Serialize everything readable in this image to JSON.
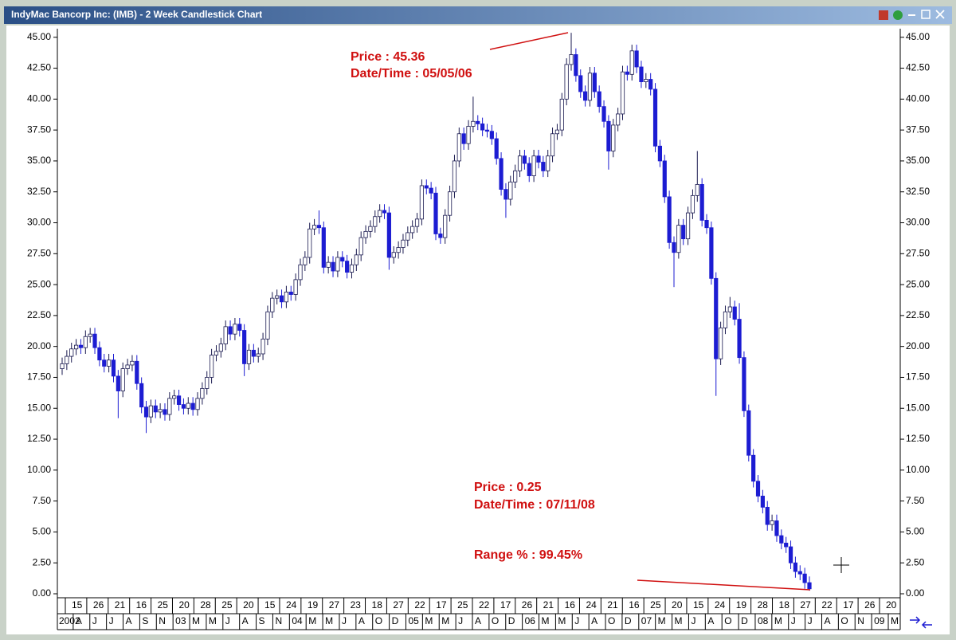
{
  "window_title": "IndyMac Bancorp Inc: (IMB) - 2 Week Candlestick Chart",
  "chart_data": {
    "type": "candlestick",
    "open": [
      18.2,
      18.6,
      19.2,
      19.8,
      20.1,
      19.9,
      20.8,
      21.0,
      19.9,
      18.9,
      18.4,
      18.9,
      17.6,
      16.4,
      18.2,
      18.5,
      18.8,
      17.0,
      15.1,
      14.3,
      15.2,
      14.7,
      14.9,
      14.5,
      15.8,
      16.0,
      15.3,
      15.0,
      15.4,
      14.9,
      15.8,
      16.6,
      17.5,
      19.3,
      19.6,
      20.2,
      21.6,
      21.0,
      21.8,
      21.3,
      18.6,
      19.7,
      19.2,
      19.4,
      20.6,
      22.8,
      23.9,
      24.1,
      23.6,
      24.4,
      24.2,
      25.4,
      26.6,
      27.2,
      29.5,
      29.8,
      29.6,
      26.4,
      26.8,
      26.1,
      27.2,
      26.9,
      26.0,
      26.6,
      27.4,
      28.8,
      29.3,
      29.7,
      30.5,
      31.0,
      30.8,
      27.2,
      27.6,
      28.0,
      28.6,
      29.2,
      29.7,
      30.3,
      33.0,
      32.8,
      32.4,
      29.1,
      28.8,
      30.6,
      32.5,
      35.0,
      37.2,
      36.4,
      37.8,
      38.2,
      38.0,
      37.5,
      37.4,
      36.8,
      35.2,
      32.7,
      31.9,
      33.3,
      34.2,
      35.4,
      34.8,
      33.8,
      35.4,
      34.9,
      34.2,
      35.4,
      37.2,
      37.5,
      40.0,
      42.8,
      43.6,
      41.9,
      40.6,
      39.9,
      42.1,
      40.6,
      39.4,
      38.2,
      35.8,
      37.9,
      38.8,
      42.2,
      42.0,
      43.9,
      42.6,
      41.4,
      41.6,
      40.8,
      36.2,
      35.0,
      32.1,
      28.4,
      27.6,
      29.8,
      28.7,
      30.8,
      32.2,
      33.1,
      30.2,
      29.6,
      25.5,
      19.0,
      21.5,
      22.8,
      23.2,
      22.2,
      19.1,
      14.8,
      11.2,
      9.1,
      7.9,
      7.0,
      5.6,
      5.9,
      4.7,
      4.1,
      3.8,
      2.5,
      1.8,
      1.6,
      0.9
    ],
    "high": [
      19.1,
      19.7,
      20.3,
      20.6,
      20.6,
      21.3,
      21.5,
      21.5,
      20.4,
      19.4,
      19.4,
      19.4,
      18.1,
      18.7,
      19.0,
      19.3,
      19.3,
      17.5,
      15.6,
      15.7,
      15.7,
      15.4,
      15.4,
      16.3,
      16.5,
      16.5,
      15.8,
      15.9,
      15.9,
      16.3,
      17.1,
      18.0,
      19.8,
      20.1,
      20.7,
      22.1,
      22.1,
      22.3,
      22.3,
      21.8,
      20.2,
      20.2,
      19.9,
      21.1,
      23.3,
      24.4,
      24.6,
      24.6,
      24.9,
      24.9,
      25.9,
      27.1,
      27.7,
      30.0,
      30.3,
      31.0,
      30.1,
      27.3,
      27.3,
      27.7,
      27.7,
      27.4,
      27.1,
      27.9,
      29.3,
      29.8,
      30.2,
      31.0,
      31.5,
      31.5,
      31.3,
      28.1,
      28.5,
      29.1,
      29.7,
      30.2,
      30.8,
      33.5,
      33.5,
      33.3,
      32.9,
      29.6,
      31.1,
      33.0,
      35.5,
      37.7,
      37.7,
      38.3,
      40.2,
      38.7,
      38.5,
      38.0,
      37.9,
      37.3,
      35.7,
      33.2,
      33.8,
      34.7,
      35.9,
      35.9,
      35.3,
      35.9,
      35.9,
      35.4,
      35.9,
      37.7,
      38.0,
      40.5,
      43.3,
      45.36,
      44.1,
      42.4,
      41.1,
      42.6,
      42.6,
      41.1,
      39.9,
      38.7,
      38.4,
      39.3,
      42.7,
      42.7,
      44.4,
      44.4,
      43.1,
      42.1,
      42.1,
      41.3,
      36.7,
      35.5,
      32.6,
      28.9,
      30.3,
      30.3,
      31.3,
      32.7,
      35.8,
      33.6,
      30.7,
      30.1,
      26.0,
      22.0,
      23.3,
      24.0,
      23.7,
      23.5,
      19.6,
      15.3,
      11.7,
      9.6,
      8.4,
      7.5,
      6.4,
      6.4,
      5.2,
      4.6,
      4.3,
      3.0,
      2.3,
      2.1,
      1.4
    ],
    "low": [
      17.7,
      18.1,
      18.7,
      19.3,
      19.4,
      19.4,
      20.3,
      19.4,
      18.4,
      17.9,
      17.9,
      17.1,
      14.2,
      15.9,
      17.7,
      18.0,
      16.5,
      14.6,
      13.0,
      13.8,
      14.2,
      14.2,
      14.0,
      14.0,
      15.3,
      14.8,
      14.5,
      14.5,
      14.4,
      14.4,
      15.3,
      16.1,
      17.0,
      18.8,
      19.1,
      19.7,
      20.5,
      20.5,
      20.8,
      17.6,
      18.1,
      18.7,
      18.7,
      18.9,
      20.1,
      22.3,
      23.4,
      23.1,
      23.1,
      23.7,
      23.7,
      24.9,
      26.1,
      26.7,
      29.0,
      29.1,
      25.9,
      25.9,
      25.6,
      25.6,
      26.4,
      25.5,
      25.5,
      26.1,
      26.9,
      28.3,
      28.8,
      29.2,
      30.0,
      30.3,
      26.2,
      26.7,
      27.1,
      27.5,
      28.1,
      28.7,
      29.2,
      29.8,
      32.3,
      31.9,
      28.6,
      28.3,
      28.3,
      30.1,
      32.0,
      34.5,
      35.9,
      35.9,
      37.3,
      37.5,
      37.0,
      36.9,
      36.3,
      34.7,
      32.2,
      30.4,
      31.4,
      32.8,
      33.7,
      34.3,
      33.3,
      33.3,
      34.4,
      33.7,
      33.7,
      34.9,
      36.7,
      37.0,
      39.5,
      42.3,
      41.4,
      40.1,
      39.4,
      39.4,
      40.1,
      38.9,
      37.7,
      34.3,
      35.3,
      37.4,
      38.3,
      41.5,
      41.5,
      42.1,
      40.9,
      40.9,
      40.3,
      35.7,
      34.5,
      31.6,
      27.9,
      24.8,
      27.1,
      28.2,
      28.2,
      30.3,
      31.7,
      29.7,
      29.1,
      25.0,
      16.0,
      18.5,
      21.0,
      22.3,
      21.7,
      18.6,
      14.3,
      10.7,
      8.6,
      7.4,
      6.5,
      5.1,
      5.1,
      4.2,
      3.6,
      3.3,
      2.0,
      1.3,
      1.1,
      0.4,
      0.25
    ],
    "close": [
      18.6,
      19.2,
      19.8,
      20.1,
      19.9,
      20.8,
      21.0,
      19.9,
      18.9,
      18.4,
      18.9,
      17.6,
      16.4,
      18.2,
      18.5,
      18.8,
      17.0,
      15.1,
      14.3,
      15.2,
      14.7,
      14.9,
      14.5,
      15.8,
      16.0,
      15.3,
      15.0,
      15.4,
      14.9,
      15.8,
      16.6,
      17.5,
      19.3,
      19.6,
      20.2,
      21.6,
      21.0,
      21.8,
      21.3,
      18.6,
      19.7,
      19.2,
      19.4,
      20.6,
      22.8,
      23.9,
      24.1,
      23.6,
      24.4,
      24.2,
      25.4,
      26.6,
      27.2,
      29.5,
      29.8,
      29.6,
      26.4,
      26.8,
      26.1,
      27.2,
      26.9,
      26.0,
      26.6,
      27.4,
      28.8,
      29.3,
      29.7,
      30.5,
      31.0,
      30.8,
      27.2,
      27.6,
      28.0,
      28.6,
      29.2,
      29.7,
      30.3,
      33.0,
      32.8,
      32.4,
      29.1,
      28.8,
      30.6,
      32.5,
      35.0,
      37.2,
      36.4,
      37.8,
      38.2,
      38.0,
      37.5,
      37.4,
      36.8,
      35.2,
      32.7,
      31.9,
      33.3,
      34.2,
      35.4,
      34.8,
      33.8,
      35.4,
      34.9,
      34.2,
      35.4,
      37.2,
      37.5,
      40.0,
      42.8,
      43.6,
      41.9,
      40.6,
      39.9,
      42.1,
      40.6,
      39.4,
      38.2,
      35.8,
      37.9,
      38.8,
      42.2,
      42.0,
      43.9,
      42.6,
      41.4,
      41.6,
      40.8,
      36.2,
      35.0,
      32.1,
      28.4,
      27.6,
      29.8,
      28.7,
      30.8,
      32.2,
      33.1,
      30.2,
      29.6,
      25.5,
      19.0,
      21.5,
      22.8,
      23.2,
      22.2,
      19.1,
      14.8,
      11.2,
      9.1,
      7.9,
      7.0,
      5.6,
      5.9,
      4.7,
      4.1,
      3.8,
      2.5,
      1.8,
      1.6,
      0.9,
      0.4
    ],
    "ylim": [
      0,
      45.5
    ],
    "yticks": [
      {
        "value": 0,
        "label": "0.00"
      },
      {
        "value": 2.5,
        "label": "2.50"
      },
      {
        "value": 5,
        "label": "5.00"
      },
      {
        "value": 7.5,
        "label": "7.50"
      },
      {
        "value": 10,
        "label": "10.00"
      },
      {
        "value": 12.5,
        "label": "12.50"
      },
      {
        "value": 15,
        "label": "15.00"
      },
      {
        "value": 17.5,
        "label": "17.50"
      },
      {
        "value": 20,
        "label": "20.00"
      },
      {
        "value": 22.5,
        "label": "22.50"
      },
      {
        "value": 25,
        "label": "25.00"
      },
      {
        "value": 27.5,
        "label": "27.50"
      },
      {
        "value": 30,
        "label": "30.00"
      },
      {
        "value": 32.5,
        "label": "32.50"
      },
      {
        "value": 35,
        "label": "35.00"
      },
      {
        "value": 37.5,
        "label": "37.50"
      },
      {
        "value": 40,
        "label": "40.00"
      },
      {
        "value": 42.5,
        "label": "42.50"
      },
      {
        "value": 45,
        "label": "45.00"
      }
    ],
    "x_day_labels": [
      15,
      26,
      21,
      16,
      25,
      20,
      28,
      25,
      20,
      15,
      24,
      19,
      27,
      23,
      18,
      27,
      22,
      17,
      25,
      22,
      17,
      26,
      21,
      16,
      24,
      21,
      16,
      25,
      20,
      15,
      24,
      19,
      28,
      18,
      27,
      22,
      17,
      26,
      20
    ],
    "x_period_labels": [
      "2002",
      "A",
      "J",
      "J",
      "A",
      "S",
      "N",
      "03",
      "M",
      "M",
      "J",
      "A",
      "S",
      "N",
      "04",
      "M",
      "M",
      "J",
      "A",
      "O",
      "D",
      "05",
      "M",
      "M",
      "J",
      "A",
      "O",
      "D",
      "06",
      "M",
      "M",
      "J",
      "A",
      "O",
      "D",
      "07",
      "M",
      "M",
      "J",
      "A",
      "O",
      "D",
      "08",
      "M",
      "J",
      "J",
      "A",
      "O",
      "N",
      "09",
      "M"
    ],
    "annotations": [
      "Price : 45.36",
      "Date/Time : 05/05/06",
      "Price : 0.25",
      "Date/Time : 07/11/08",
      "Range % : 99.45%"
    ],
    "colors": {
      "up": "#ffffff",
      "down": "#1c1cd2",
      "outline": "#1a1a50"
    }
  }
}
